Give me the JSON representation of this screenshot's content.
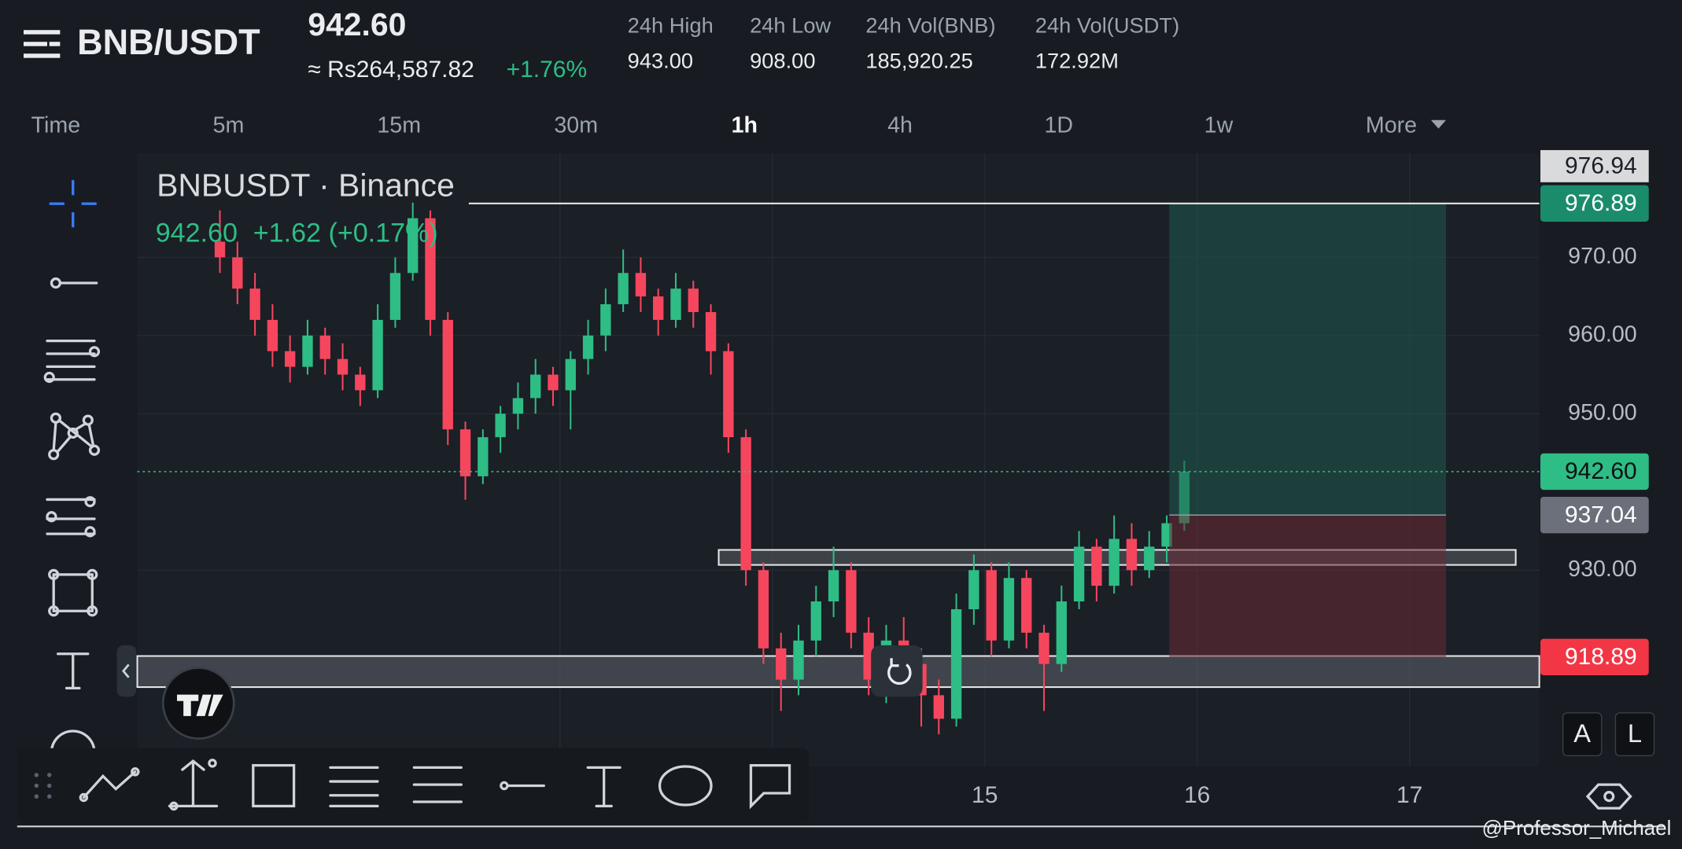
{
  "header": {
    "pair": "BNB/USDT",
    "price": "942.60",
    "fiat_price": "≈ Rs264,587.82",
    "change": "+1.76%",
    "stats": [
      {
        "label": "24h High",
        "value": "943.00"
      },
      {
        "label": "24h Low",
        "value": "908.00"
      },
      {
        "label": "24h Vol(BNB)",
        "value": "185,920.25"
      },
      {
        "label": "24h Vol(USDT)",
        "value": "172.92M"
      }
    ]
  },
  "tabs": [
    "Time",
    "5m",
    "15m",
    "30m",
    "1h",
    "4h",
    "1D",
    "1w",
    "More"
  ],
  "active_tab": 4,
  "chart_data": {
    "type": "candlestick",
    "title": "BNBUSDT · Binance",
    "legend_price": "942.60",
    "legend_change": "+1.62 (+0.17%)",
    "x_labels": [
      "15",
      "16",
      "17"
    ],
    "up_color": "#2ebd85",
    "down_color": "#f6465d",
    "ylim": [
      904.9,
      983.3
    ],
    "yticks": [
      {
        "value": 930,
        "label": "930.00"
      },
      {
        "value": 950,
        "label": "950.00"
      },
      {
        "value": 960,
        "label": "960.00"
      },
      {
        "value": 970,
        "label": "970.00"
      }
    ],
    "crosshair_price": 976.94,
    "last_price": {
      "value": 942.6,
      "label": "942.60"
    },
    "position": {
      "target": 976.89,
      "entry": 937.04,
      "stop": 918.89
    },
    "candles": [
      [
        972,
        976,
        968,
        970
      ],
      [
        970,
        972,
        964,
        966
      ],
      [
        966,
        968,
        960,
        962
      ],
      [
        962,
        964,
        956,
        958
      ],
      [
        958,
        960,
        954,
        956
      ],
      [
        956,
        962,
        955,
        960
      ],
      [
        960,
        961,
        955,
        957
      ],
      [
        957,
        959,
        953,
        955
      ],
      [
        955,
        956,
        951,
        953
      ],
      [
        953,
        964,
        952,
        962
      ],
      [
        962,
        970,
        961,
        968
      ],
      [
        968,
        977,
        967,
        975
      ],
      [
        975,
        976,
        960,
        962
      ],
      [
        962,
        963,
        946,
        948
      ],
      [
        948,
        949,
        939,
        942
      ],
      [
        942,
        948,
        941,
        947
      ],
      [
        947,
        951,
        945,
        950
      ],
      [
        950,
        954,
        948,
        952
      ],
      [
        952,
        957,
        950,
        955
      ],
      [
        955,
        956,
        951,
        953
      ],
      [
        953,
        958,
        948,
        957
      ],
      [
        957,
        962,
        955,
        960
      ],
      [
        960,
        966,
        958,
        964
      ],
      [
        964,
        971,
        963,
        968
      ],
      [
        968,
        970,
        963,
        965
      ],
      [
        965,
        966,
        960,
        962
      ],
      [
        962,
        968,
        961,
        966
      ],
      [
        966,
        967,
        961,
        963
      ],
      [
        963,
        964,
        955,
        958
      ],
      [
        958,
        959,
        945,
        947
      ],
      [
        947,
        948,
        928,
        930
      ],
      [
        930,
        931,
        918,
        920
      ],
      [
        920,
        922,
        912,
        916
      ],
      [
        916,
        923,
        914,
        921
      ],
      [
        921,
        928,
        919,
        926
      ],
      [
        926,
        933,
        924,
        930
      ],
      [
        930,
        931,
        920,
        922
      ],
      [
        922,
        924,
        914,
        916
      ],
      [
        916,
        923,
        913,
        921
      ],
      [
        921,
        924,
        916,
        918
      ],
      [
        918,
        920,
        910,
        914
      ],
      [
        914,
        916,
        909,
        911
      ],
      [
        911,
        927,
        910,
        925
      ],
      [
        925,
        932,
        923,
        930
      ],
      [
        930,
        931,
        919,
        921
      ],
      [
        921,
        931,
        920,
        929
      ],
      [
        929,
        930,
        920,
        922
      ],
      [
        922,
        923,
        912,
        918
      ],
      [
        918,
        928,
        917,
        926
      ],
      [
        926,
        935,
        925,
        933
      ],
      [
        933,
        934,
        926,
        928
      ],
      [
        928,
        937,
        927,
        934
      ],
      [
        934,
        936,
        928,
        930
      ],
      [
        930,
        935,
        929,
        933
      ],
      [
        933,
        937,
        931,
        936
      ],
      [
        936,
        944,
        935,
        942.6
      ]
    ]
  },
  "buttons": [
    "A",
    "L"
  ],
  "watermark": "@Professor_Michael"
}
